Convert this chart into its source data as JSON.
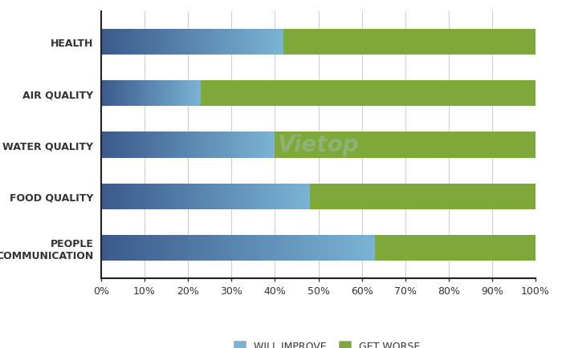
{
  "categories": [
    "HEALTH",
    "AIR QUALITY",
    "WATER QUALITY",
    "FOOD QUALITY",
    "PEOPLE\nCOMMUNICATION"
  ],
  "will_improve": [
    42,
    23,
    40,
    48,
    63
  ],
  "get_worse": [
    58,
    77,
    60,
    52,
    37
  ],
  "blue_dark": "#3a5a8c",
  "blue_light": "#7ab3d4",
  "green_color": "#7ea83a",
  "background": "#ffffff",
  "grid_color": "#cccccc",
  "bar_height": 0.5,
  "legend_labels": [
    "WILL IMPROVE",
    "GET WORSE"
  ],
  "x_ticks": [
    0,
    10,
    20,
    30,
    40,
    50,
    60,
    70,
    80,
    90,
    100
  ],
  "x_tick_labels": [
    "0%",
    "10%",
    "20%",
    "30%",
    "40%",
    "50%",
    "60%",
    "70%",
    "80%",
    "90%",
    "100%"
  ]
}
